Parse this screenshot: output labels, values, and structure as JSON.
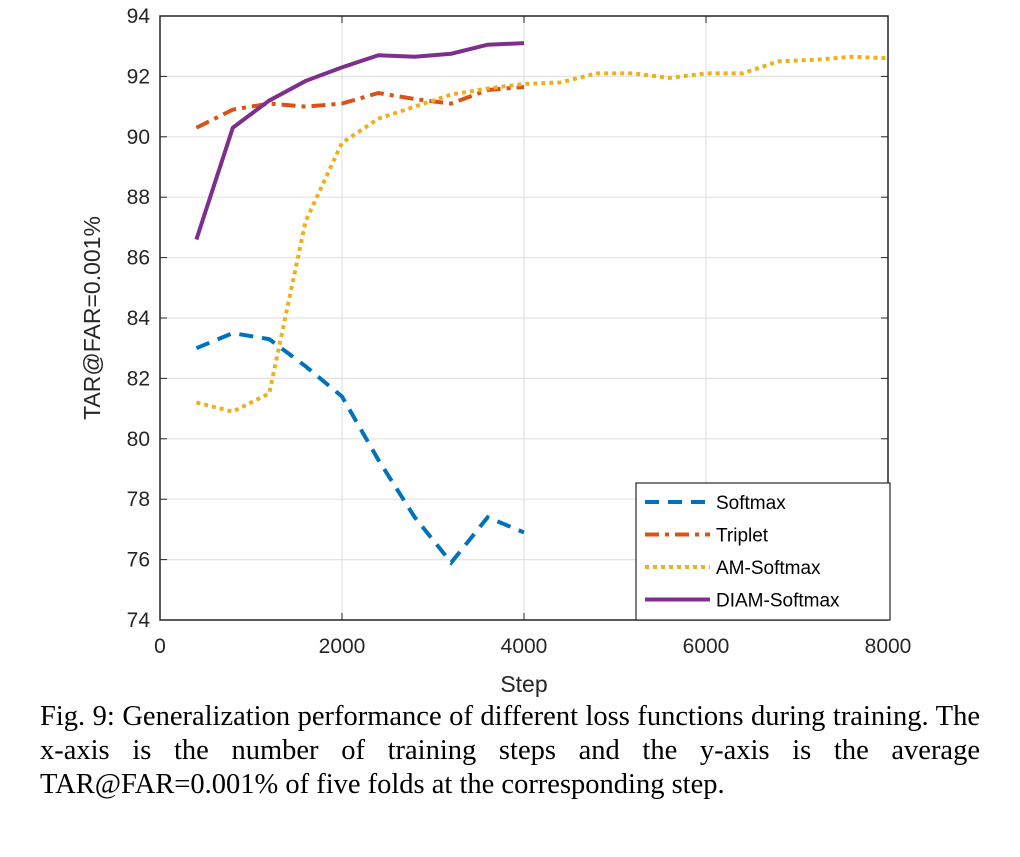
{
  "chart_data": {
    "type": "line",
    "xlabel": "Step",
    "ylabel": "TAR@FAR=0.001%",
    "xlim": [
      0,
      8000
    ],
    "ylim": [
      74,
      94
    ],
    "xticks": [
      0,
      2000,
      4000,
      6000,
      8000
    ],
    "yticks": [
      74,
      76,
      78,
      80,
      82,
      84,
      86,
      88,
      90,
      92,
      94
    ],
    "grid": true,
    "legend_position": "bottom-right",
    "series": [
      {
        "name": "Softmax",
        "color": "#0072BD",
        "style": "dashed",
        "x": [
          400,
          800,
          1200,
          1600,
          2000,
          2400,
          2800,
          3200,
          3600,
          4000
        ],
        "y": [
          83.0,
          83.5,
          83.3,
          82.4,
          81.4,
          79.3,
          77.4,
          75.9,
          77.4,
          76.9
        ]
      },
      {
        "name": "Triplet",
        "color": "#D95319",
        "style": "dashdot",
        "x": [
          400,
          800,
          1200,
          1600,
          2000,
          2400,
          2800,
          3200,
          3600,
          4000
        ],
        "y": [
          90.3,
          90.9,
          91.1,
          91.0,
          91.1,
          91.45,
          91.25,
          91.1,
          91.55,
          91.65
        ]
      },
      {
        "name": "AM-Softmax",
        "color": "#EDB120",
        "style": "dotted",
        "x": [
          400,
          800,
          1200,
          1600,
          2000,
          2400,
          2800,
          3200,
          3600,
          4000,
          4400,
          4800,
          5200,
          5600,
          6000,
          6400,
          6800,
          7200,
          7600,
          8000
        ],
        "y": [
          81.2,
          80.9,
          81.5,
          87.2,
          89.8,
          90.6,
          91.0,
          91.4,
          91.6,
          91.75,
          91.8,
          92.1,
          92.1,
          91.95,
          92.1,
          92.1,
          92.5,
          92.55,
          92.65,
          92.6
        ]
      },
      {
        "name": "DIAM-Softmax",
        "color": "#7E2F8E",
        "style": "solid",
        "x": [
          400,
          800,
          1200,
          1600,
          2000,
          2400,
          2800,
          3200,
          3600,
          4000
        ],
        "y": [
          86.6,
          90.3,
          91.2,
          91.85,
          92.3,
          92.7,
          92.65,
          92.75,
          93.05,
          93.1
        ]
      }
    ]
  },
  "caption": "Fig. 9: Generalization performance of different loss functions during training. The x-axis is the number of training steps and the y-axis is the average TAR@FAR=0.001% of five folds at the corresponding step."
}
